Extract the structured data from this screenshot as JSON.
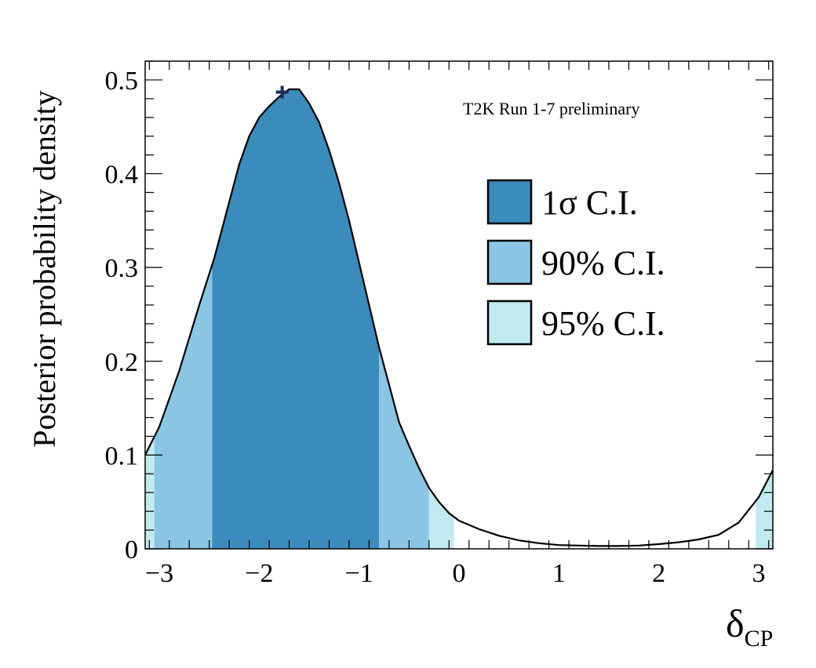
{
  "chart_data": {
    "type": "area",
    "xlabel": "δ",
    "xlabel_sub": "CP",
    "ylabel": "Posterior probability density",
    "xlim": [
      -3.1416,
      3.1416
    ],
    "ylim": [
      0,
      0.52
    ],
    "x_ticks": [
      -3,
      -2,
      -1,
      0,
      1,
      2,
      3
    ],
    "x_tick_labels": [
      "−3",
      "−2",
      "−1",
      "0",
      "1",
      "2",
      "3"
    ],
    "y_ticks": [
      0,
      0.1,
      0.2,
      0.3,
      0.4,
      0.5
    ],
    "y_tick_labels": [
      "0",
      "0.1",
      "0.2",
      "0.3",
      "0.4",
      "0.5"
    ],
    "annotation": "T2K Run 1-7 preliminary",
    "best_fit": {
      "x": -1.77,
      "y": 0.487,
      "color": "#1f2b5c"
    },
    "curve": {
      "x": [
        -3.1416,
        -3.0,
        -2.8,
        -2.6,
        -2.45,
        -2.3,
        -2.2,
        -2.1,
        -2.0,
        -1.9,
        -1.8,
        -1.7,
        -1.6,
        -1.5,
        -1.4,
        -1.3,
        -1.2,
        -1.1,
        -1.0,
        -0.9,
        -0.8,
        -0.7,
        -0.6,
        -0.5,
        -0.4,
        -0.3,
        -0.2,
        -0.1,
        0.0,
        0.2,
        0.4,
        0.6,
        0.8,
        1.0,
        1.2,
        1.4,
        1.6,
        1.8,
        2.0,
        2.2,
        2.4,
        2.6,
        2.8,
        3.0,
        3.1416
      ],
      "y": [
        0.1,
        0.13,
        0.19,
        0.26,
        0.31,
        0.37,
        0.41,
        0.44,
        0.46,
        0.472,
        0.482,
        0.49,
        0.49,
        0.475,
        0.455,
        0.425,
        0.39,
        0.35,
        0.305,
        0.26,
        0.215,
        0.175,
        0.135,
        0.11,
        0.086,
        0.065,
        0.05,
        0.038,
        0.03,
        0.021,
        0.014,
        0.009,
        0.006,
        0.004,
        0.0035,
        0.003,
        0.003,
        0.0035,
        0.005,
        0.007,
        0.01,
        0.015,
        0.028,
        0.055,
        0.084
      ]
    },
    "intervals": [
      {
        "name": "1σ C.I.",
        "color": "#3b8bbd",
        "ranges": [
          [
            -2.47,
            -0.8
          ]
        ]
      },
      {
        "name": "90% C.I.",
        "color": "#8ac5e4",
        "ranges": [
          [
            -3.05,
            -2.47
          ],
          [
            -0.8,
            -0.3
          ]
        ]
      },
      {
        "name": "95% C.I.",
        "color": "#c0e9f0",
        "ranges": [
          [
            -3.1416,
            -3.05
          ],
          [
            -0.3,
            -0.05
          ],
          [
            2.97,
            3.1416
          ]
        ]
      }
    ],
    "legend": {
      "position": "right",
      "entries": [
        "1σ C.I.",
        "90% C.I.",
        "95% C.I."
      ]
    }
  }
}
